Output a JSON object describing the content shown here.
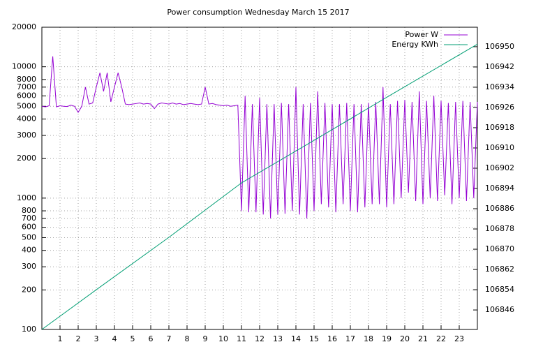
{
  "chart_data": {
    "type": "line",
    "title": "Power consumption Wednesday March 15 2017",
    "xlim": [
      0,
      24
    ],
    "xticks": [
      1,
      2,
      3,
      4,
      5,
      6,
      7,
      8,
      9,
      10,
      11,
      12,
      13,
      14,
      15,
      16,
      17,
      18,
      19,
      20,
      21,
      22,
      23
    ],
    "ylim": [
      100,
      20000
    ],
    "yscale": "log",
    "yticks": [
      100,
      200,
      300,
      400,
      500,
      600,
      700,
      800,
      1000,
      2000,
      3000,
      4000,
      5000,
      6000,
      7000,
      8000,
      10000,
      20000
    ],
    "y2lim": [
      106838.3,
      106957.7
    ],
    "y2ticks": [
      106846,
      106854,
      106862,
      106870,
      106878,
      106886,
      106894,
      106902,
      106910,
      106918,
      106926,
      106934,
      106942,
      106950
    ],
    "grid": true,
    "legend": "top-right",
    "series": [
      {
        "name": "Power W",
        "color": "#9400d3",
        "x": [
          0,
          0.2,
          0.4,
          0.6,
          0.8,
          1,
          1.2,
          1.4,
          1.6,
          1.8,
          2,
          2.2,
          2.4,
          2.6,
          2.8,
          3,
          3.2,
          3.4,
          3.6,
          3.8,
          4,
          4.2,
          4.4,
          4.6,
          4.8,
          5,
          5.2,
          5.4,
          5.6,
          5.8,
          6,
          6.2,
          6.4,
          6.6,
          6.8,
          7,
          7.2,
          7.4,
          7.6,
          7.8,
          8,
          8.2,
          8.4,
          8.6,
          8.8,
          9,
          9.2,
          9.4,
          9.6,
          9.8,
          10,
          10.2,
          10.4,
          10.6,
          10.8,
          11,
          11.2,
          11.4,
          11.6,
          11.8,
          12,
          12.2,
          12.4,
          12.6,
          12.8,
          13,
          13.2,
          13.4,
          13.6,
          13.8,
          14,
          14.2,
          14.4,
          14.6,
          14.8,
          15,
          15.2,
          15.4,
          15.6,
          15.8,
          16,
          16.2,
          16.4,
          16.6,
          16.8,
          17,
          17.2,
          17.4,
          17.6,
          17.8,
          18,
          18.2,
          18.4,
          18.6,
          18.8,
          19,
          19.2,
          19.4,
          19.6,
          19.8,
          20,
          20.2,
          20.4,
          20.6,
          20.8,
          21,
          21.2,
          21.4,
          21.6,
          21.8,
          22,
          22.2,
          22.4,
          22.6,
          22.8,
          23,
          23.2,
          23.4,
          23.6,
          23.8,
          24
        ],
        "values": [
          5000,
          4950,
          5050,
          12000,
          4950,
          5050,
          5000,
          4980,
          5100,
          5000,
          4500,
          5000,
          7000,
          5200,
          5300,
          7000,
          9000,
          6500,
          9000,
          5400,
          7000,
          9000,
          7000,
          5200,
          5150,
          5200,
          5250,
          5300,
          5200,
          5250,
          5200,
          4800,
          5200,
          5300,
          5250,
          5200,
          5300,
          5200,
          5250,
          5150,
          5200,
          5250,
          5200,
          5150,
          5200,
          7000,
          5200,
          5250,
          5150,
          5100,
          5050,
          5100,
          5000,
          5050,
          5100,
          800,
          6000,
          780,
          5200,
          780,
          5800,
          750,
          5200,
          700,
          5200,
          750,
          5300,
          760,
          5200,
          800,
          7000,
          750,
          5200,
          700,
          5300,
          800,
          6500,
          900,
          5300,
          850,
          5200,
          780,
          5200,
          900,
          5300,
          800,
          5200,
          780,
          5200,
          850,
          5300,
          900,
          5400,
          900,
          7000,
          850,
          5200,
          900,
          5500,
          1000,
          5600,
          1100,
          5400,
          950,
          6500,
          900,
          5500,
          1000,
          6000,
          950,
          5500,
          1050,
          5300,
          900,
          5400,
          1000,
          5500,
          950,
          5400,
          1000,
          5400
        ]
      },
      {
        "name": "Energy KWh",
        "color": "#009e73",
        "axis": "y2",
        "x": [
          0,
          3,
          7,
          11,
          15,
          19,
          24
        ],
        "values": [
          106838.3,
          106854,
          106874.7,
          106896.2,
          106913,
          106930,
          106951
        ]
      }
    ]
  }
}
